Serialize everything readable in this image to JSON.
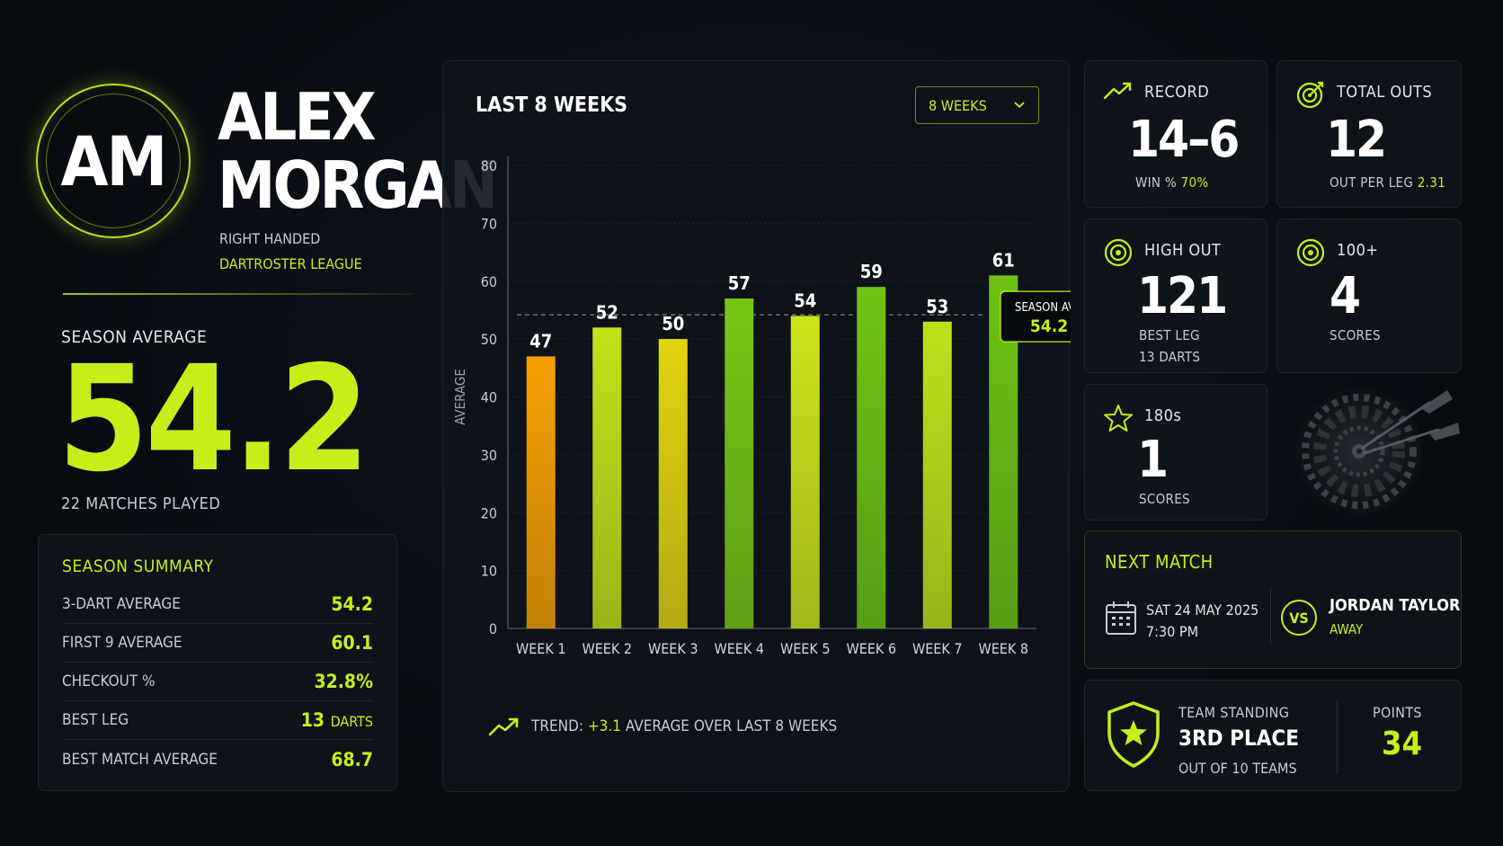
{
  "player": {
    "initials": "AM",
    "first_name": "ALEX",
    "last_name": "MORGAN",
    "handedness": "RIGHT HANDED",
    "league": "DARTROSTER LEAGUE"
  },
  "season": {
    "average_label": "SEASON AVERAGE",
    "average_value": "54.2",
    "matches_played": "22 MATCHES PLAYED"
  },
  "summary": {
    "title": "SEASON SUMMARY",
    "rows": [
      {
        "label": "3-DART AVERAGE",
        "value": "54.2",
        "unit": ""
      },
      {
        "label": "FIRST 9 AVERAGE",
        "value": "60.1",
        "unit": ""
      },
      {
        "label": "CHECKOUT %",
        "value": "32.8%",
        "unit": ""
      },
      {
        "label": "BEST LEG",
        "value": "13",
        "unit": "DARTS"
      },
      {
        "label": "BEST MATCH AVERAGE",
        "value": "68.7",
        "unit": ""
      }
    ]
  },
  "chart_panel": {
    "title": "LAST 8 WEEKS",
    "range_value": "8 WEEKS",
    "trend_prefix": "TREND:",
    "trend_value": "+3.1",
    "trend_suffix": "AVERAGE OVER LAST 8 WEEKS"
  },
  "chart_data": {
    "type": "bar",
    "categories": [
      "WEEK 1",
      "WEEK 2",
      "WEEK 3",
      "WEEK 4",
      "WEEK 5",
      "WEEK 6",
      "WEEK 7",
      "WEEK 8"
    ],
    "values": [
      47,
      52,
      50,
      57,
      54,
      59,
      53,
      61
    ],
    "bar_colors": [
      "#f5a000",
      "#c2e21a",
      "#e3d40f",
      "#77c615",
      "#cde41b",
      "#6fc414",
      "#bde21b",
      "#6dc314"
    ],
    "ylabel": "AVERAGE",
    "xlabel": "",
    "ylim": [
      0,
      80
    ],
    "yticks": [
      0,
      10,
      20,
      30,
      40,
      50,
      60,
      70,
      80
    ],
    "grid": true,
    "reference_line": {
      "value": 54.2,
      "label": "SEASON AVG",
      "value_label": "54.2"
    }
  },
  "stats": {
    "record": {
      "label": "RECORD",
      "value": "14–6",
      "sub_label": "WIN %",
      "sub_value": "70%"
    },
    "total_outs": {
      "label": "TOTAL OUTS",
      "value": "12",
      "sub_label": "OUT PER LEG",
      "sub_value": "2.31"
    },
    "high_out": {
      "label": "HIGH OUT",
      "value": "121",
      "sub_label": "BEST LEG",
      "sub_value": "13 DARTS"
    },
    "hundred_plus": {
      "label": "100+",
      "value": "4",
      "sub_label": "SCORES"
    },
    "one_eighties": {
      "label": "180s",
      "value": "1",
      "sub_label": "SCORES"
    }
  },
  "next_match": {
    "title": "NEXT MATCH",
    "date": "SAT 24 MAY 2025",
    "time": "7:30 PM",
    "vs": "VS",
    "opponent": "JORDAN TAYLOR",
    "venue": "AWAY"
  },
  "standing": {
    "label": "TEAM STANDING",
    "place": "3RD PLACE",
    "out_of": "OUT OF 10 TEAMS",
    "points_label": "POINTS",
    "points": "34"
  },
  "colors": {
    "accent": "#c6ef1a",
    "background": "#0a0e13",
    "card": "#0f141b"
  }
}
